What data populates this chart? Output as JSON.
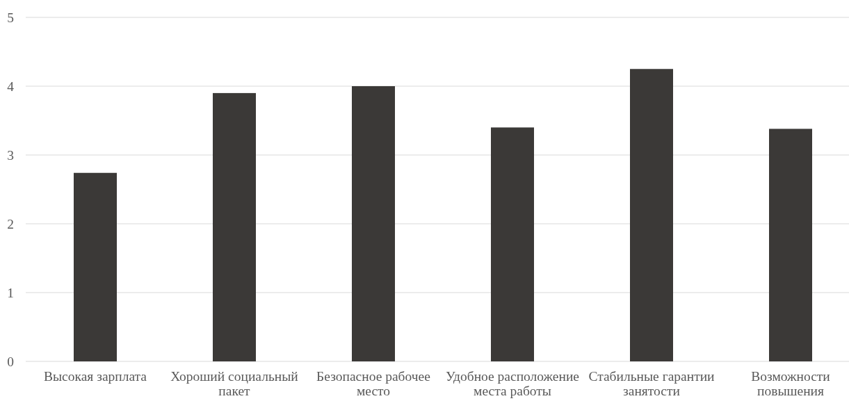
{
  "chart_data": {
    "type": "bar",
    "categories": [
      "Высокая зарплата",
      "Хороший социальный пакет",
      "Безопасное рабочее место",
      "Удобное расположение места работы",
      "Стабильные гарантии занятости",
      "Возможности повышения"
    ],
    "values": [
      2.74,
      3.9,
      4.0,
      3.4,
      4.25,
      3.38
    ],
    "color": "#3b3937",
    "ylim": [
      0,
      5
    ],
    "yticks": [
      0,
      1,
      2,
      3,
      4,
      5
    ],
    "grid": "y"
  }
}
